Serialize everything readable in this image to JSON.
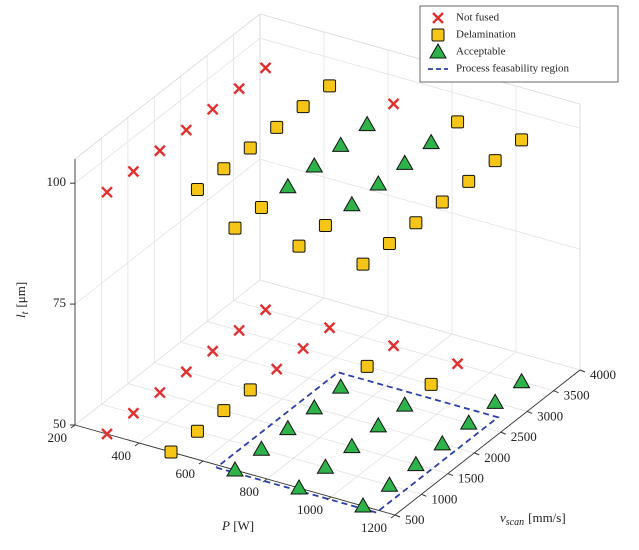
{
  "chart_data": {
    "type": "scatter3d",
    "xlabel": {
      "symbol": "P",
      "unit": "[W]"
    },
    "ylabel": {
      "symbol": "v",
      "subscript": "scan",
      "unit": "[mm/s]"
    },
    "zlabel": {
      "symbol": "l",
      "subscript": "t",
      "unit": "[μm]"
    },
    "xlim": [
      200,
      1200
    ],
    "xticks": [
      200,
      400,
      600,
      800,
      1000,
      1200
    ],
    "ylim": [
      500,
      4000
    ],
    "yticks": [
      500,
      1000,
      1500,
      2000,
      2500,
      3000,
      3500,
      4000
    ],
    "zlim": [
      50,
      105
    ],
    "zticks": [
      50,
      75,
      100
    ],
    "grid": true,
    "legend": "upper right",
    "series": [
      {
        "name": "Not fused",
        "marker": "x",
        "color": "#e03030",
        "x": [
          300,
          300,
          300,
          300,
          300,
          300,
          300,
          700,
          300,
          300,
          300,
          300,
          300,
          300,
          300,
          500,
          500,
          500,
          700,
          900
        ],
        "y": [
          500,
          1000,
          1500,
          2000,
          2500,
          3000,
          3500,
          3500,
          500,
          1000,
          1500,
          2000,
          2500,
          3000,
          3500,
          2500,
          3000,
          3500,
          3500,
          3500
        ],
        "z": [
          100,
          100,
          100,
          100,
          100,
          100,
          100,
          100,
          50,
          50,
          50,
          50,
          50,
          50,
          50,
          50,
          50,
          50,
          50,
          50
        ]
      },
      {
        "name": "Delamination",
        "marker": "square",
        "color": "#f5c518",
        "x": [
          500,
          500,
          500,
          500,
          500,
          500,
          700,
          700,
          900,
          900,
          900,
          1100,
          1100,
          1100,
          1100,
          1100,
          1100,
          1100,
          500,
          500,
          500,
          500,
          700,
          900
        ],
        "y": [
          1000,
          1500,
          2000,
          2500,
          3000,
          3500,
          500,
          1000,
          500,
          1000,
          3500,
          500,
          1000,
          1500,
          2000,
          2500,
          3000,
          3500,
          500,
          1000,
          1500,
          2000,
          3000,
          3000
        ],
        "z": [
          100,
          100,
          100,
          100,
          100,
          100,
          100,
          100,
          100,
          100,
          100,
          100,
          100,
          100,
          100,
          100,
          100,
          100,
          50,
          50,
          50,
          50,
          50,
          50
        ]
      },
      {
        "name": "Acceptable",
        "marker": "triangle",
        "color": "#2eb34a",
        "x": [
          700,
          700,
          700,
          700,
          900,
          900,
          900,
          900,
          700,
          700,
          700,
          700,
          700,
          900,
          900,
          900,
          900,
          900,
          1100,
          1100,
          1100,
          1100,
          1100,
          1100,
          1100
        ],
        "y": [
          1500,
          2000,
          2500,
          3000,
          1500,
          2000,
          2500,
          3000,
          500,
          1000,
          1500,
          2000,
          2500,
          500,
          1000,
          1500,
          2000,
          2500,
          500,
          1000,
          1500,
          2000,
          2500,
          3000,
          3500
        ],
        "z": [
          100,
          100,
          100,
          100,
          100,
          100,
          100,
          100,
          50,
          50,
          50,
          50,
          50,
          50,
          50,
          50,
          50,
          50,
          50,
          50,
          50,
          50,
          50,
          50,
          50
        ]
      },
      {
        "name": "Process feasability region",
        "marker": "dashed",
        "color": "#2a3fa8",
        "x": [
          650,
          1150,
          1150,
          650,
          650
        ],
        "y": [
          450,
          450,
          2750,
          2750,
          450
        ],
        "z": [
          50,
          50,
          50,
          50,
          50
        ]
      }
    ]
  }
}
